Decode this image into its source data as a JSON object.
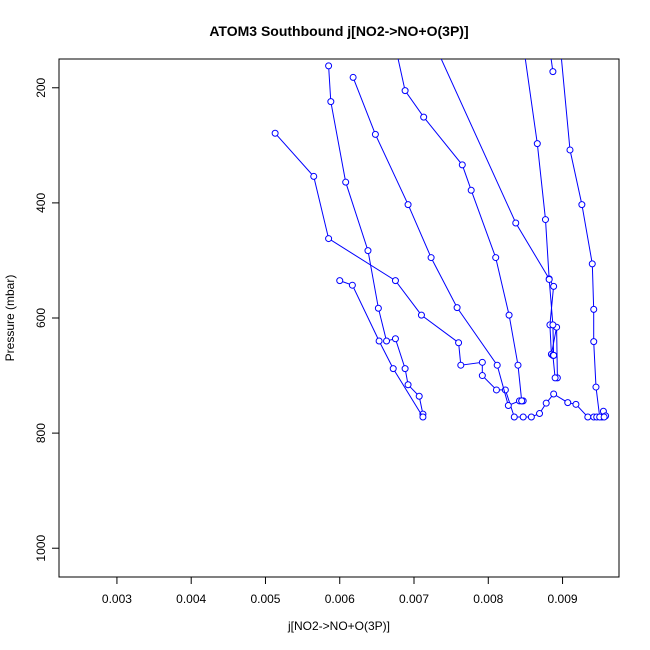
{
  "chart_data": {
    "type": "scatter",
    "title": "ATOM3 Southbound j[NO2->NO+O(3P)]",
    "xlabel": "j[NO2->NO+O(3P)]",
    "ylabel": "Pressure (mbar)",
    "xlim": [
      0.00222,
      0.00976
    ],
    "ylim": [
      1050,
      150
    ],
    "y_reversed": true,
    "grid": false,
    "legend": "none",
    "color": "#0000ff",
    "marker": "open-circle",
    "x_ticks": [
      0.003,
      0.004,
      0.005,
      0.006,
      0.007,
      0.008,
      0.009
    ],
    "x_tick_labels": [
      "0.003",
      "0.004",
      "0.005",
      "0.006",
      "0.007",
      "0.008",
      "0.009"
    ],
    "y_ticks": [
      200,
      400,
      600,
      800,
      1000
    ],
    "y_tick_labels": [
      "200",
      "400",
      "600",
      "800",
      "1000"
    ],
    "series": [
      {
        "x": [
          0.00513,
          0.00565,
          0.00585,
          0.00675,
          0.0071,
          0.0076,
          0.00763,
          0.00792,
          0.00792,
          0.00811,
          0.00823,
          0.00835,
          0.00847,
          0.00858,
          0.00869,
          0.00878,
          0.00888,
          0.00907,
          0.00918,
          0.00934,
          0.00942,
          0.00946,
          0.00953,
          0.00955,
          0.00958
        ],
        "y": [
          279,
          354,
          462,
          535,
          595,
          643,
          682,
          677,
          700,
          725,
          725,
          772,
          772,
          772,
          766,
          748,
          732,
          747,
          750,
          772,
          772,
          772,
          772,
          762,
          770
        ]
      },
      {
        "x": [
          0.00585,
          0.00588,
          0.00608,
          0.00638,
          0.00652,
          0.00663,
          0.00675,
          0.00688,
          0.00692,
          0.00707,
          0.00712
        ],
        "y": [
          162,
          224,
          364,
          483,
          583,
          640,
          636,
          688,
          716,
          736,
          767
        ]
      },
      {
        "x": [
          0.006,
          0.00617,
          0.00653,
          0.00672,
          0.00712
        ],
        "y": [
          535,
          543,
          640,
          688,
          772
        ]
      },
      {
        "x": [
          0.00618,
          0.00648,
          0.00692,
          0.00723,
          0.00758,
          0.00812,
          0.00827,
          0.00842,
          0.00845,
          0.00847
        ],
        "y": [
          182,
          281,
          403,
          495,
          582,
          682,
          752,
          744,
          744,
          744
        ]
      },
      {
        "x": [
          0.00665,
          0.00688,
          0.00713,
          0.00765,
          0.00777,
          0.0081,
          0.00828,
          0.0084,
          0.00845
        ],
        "y": [
          70,
          205,
          251,
          334,
          378,
          495,
          595,
          682,
          744
        ]
      },
      {
        "x": [
          0.00705,
          0.00837,
          0.00882,
          0.00888,
          0.00883,
          0.00885,
          0.00892,
          0.00893,
          0.0089,
          0.00887
        ],
        "y": [
          60,
          435,
          532,
          545,
          612,
          663,
          616,
          704,
          704,
          665
        ]
      },
      {
        "x": [
          0.0084,
          0.00866,
          0.00877,
          0.00882,
          0.00887,
          0.00888,
          0.00888
        ],
        "y": [
          60,
          297,
          429,
          533,
          612,
          665,
          665
        ]
      },
      {
        "x": [
          0.00892,
          0.0091,
          0.00926,
          0.0094,
          0.00942,
          0.00942,
          0.00945,
          0.0095,
          0.00956
        ],
        "y": [
          60,
          308,
          403,
          506,
          585,
          641,
          720,
          772,
          772
        ]
      },
      {
        "x": [
          0.00875,
          0.00887
        ],
        "y": [
          60,
          172
        ]
      }
    ]
  }
}
